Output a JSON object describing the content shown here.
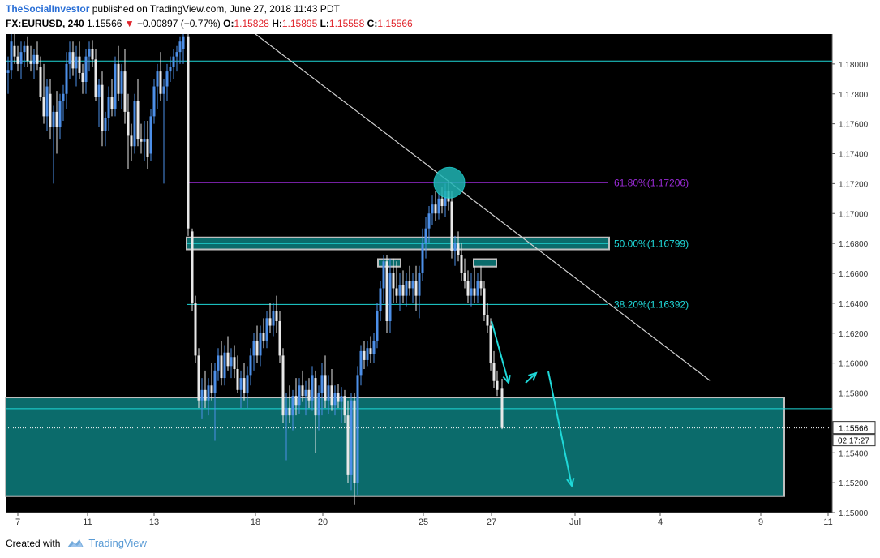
{
  "header": {
    "publisher": "TheSocialInvestor",
    "published_text": "published on TradingView.com, June 27, 2018 11:43 PDT",
    "symbol": "FX:EURUSD, 240",
    "last": "1.15566",
    "change": "−0.00897 (−0.77%)",
    "o_label": "O:",
    "o_value": "1.15828",
    "h_label": "H:",
    "h_value": "1.15895",
    "l_label": "L:",
    "l_value": "1.15558",
    "c_label": "C:",
    "c_value": "1.15566"
  },
  "footer": {
    "created_with": "Created with",
    "brand": "TradingView"
  },
  "colors": {
    "background": "#000000",
    "bull": "#4d8fe8",
    "bear": "#e8e8e8",
    "fib": "#1fd8d8",
    "fib618": "#9b2bd8",
    "zone": "#0b6b6b",
    "text": "#ffffff"
  },
  "chart_data": {
    "type": "candlestick",
    "symbol": "FX:EURUSD",
    "timeframe": "240",
    "ylim": [
      1.15,
      1.182
    ],
    "y_ticks": [
      "1.18000",
      "1.17800",
      "1.17600",
      "1.17400",
      "1.17200",
      "1.17000",
      "1.16800",
      "1.16600",
      "1.16400",
      "1.16200",
      "1.16000",
      "1.15800",
      "1.15400",
      "1.15200",
      "1.15000"
    ],
    "x_ticks": [
      "7",
      "11",
      "13",
      "18",
      "20",
      "25",
      "27",
      "Jul",
      "4",
      "9",
      "11"
    ],
    "fib_levels": [
      {
        "label": "61.80%(1.17206)",
        "value": 1.17206
      },
      {
        "label": "50.00%(1.16799)",
        "value": 1.16799
      },
      {
        "label": "38.20%(1.16392)",
        "value": 1.16392
      }
    ],
    "support_zone": [
      1.1511,
      1.1577
    ],
    "resistance_zone": [
      1.1676,
      1.1684
    ],
    "horizontal_lines": [
      1.1802,
      1.15695
    ],
    "current_price": {
      "value": "1.15566",
      "countdown": "02:17:27"
    },
    "trendline": [
      [
        315,
        1.182
      ],
      [
        876,
        1.1588
      ]
    ],
    "candles": [
      {
        "x": 10,
        "o": 1.1794,
        "h": 1.1805,
        "l": 1.178,
        "c": 1.1796
      },
      {
        "x": 14,
        "o": 1.1796,
        "h": 1.182,
        "l": 1.179,
        "c": 1.1815
      },
      {
        "x": 18,
        "o": 1.1812,
        "h": 1.182,
        "l": 1.18,
        "c": 1.1805
      },
      {
        "x": 22,
        "o": 1.1805,
        "h": 1.1812,
        "l": 1.1795,
        "c": 1.18
      },
      {
        "x": 26,
        "o": 1.18,
        "h": 1.1815,
        "l": 1.179,
        "c": 1.1808
      },
      {
        "x": 30,
        "o": 1.1808,
        "h": 1.1815,
        "l": 1.1798,
        "c": 1.1812
      },
      {
        "x": 34,
        "o": 1.1812,
        "h": 1.1818,
        "l": 1.1798,
        "c": 1.1802
      },
      {
        "x": 38,
        "o": 1.1802,
        "h": 1.1812,
        "l": 1.1795,
        "c": 1.18
      },
      {
        "x": 42,
        "o": 1.18,
        "h": 1.181,
        "l": 1.179,
        "c": 1.1806
      },
      {
        "x": 46,
        "o": 1.1806,
        "h": 1.1815,
        "l": 1.1796,
        "c": 1.18
      },
      {
        "x": 50,
        "o": 1.1798,
        "h": 1.1805,
        "l": 1.1775,
        "c": 1.1778
      },
      {
        "x": 54,
        "o": 1.1778,
        "h": 1.18,
        "l": 1.176,
        "c": 1.1765
      },
      {
        "x": 58,
        "o": 1.1765,
        "h": 1.179,
        "l": 1.1755,
        "c": 1.1785
      },
      {
        "x": 62,
        "o": 1.178,
        "h": 1.179,
        "l": 1.175,
        "c": 1.1758
      },
      {
        "x": 66,
        "o": 1.1758,
        "h": 1.1772,
        "l": 1.172,
        "c": 1.1768
      },
      {
        "x": 70,
        "o": 1.1768,
        "h": 1.1782,
        "l": 1.174,
        "c": 1.1758
      },
      {
        "x": 74,
        "o": 1.1758,
        "h": 1.178,
        "l": 1.175,
        "c": 1.1775
      },
      {
        "x": 78,
        "o": 1.1775,
        "h": 1.1786,
        "l": 1.1762,
        "c": 1.178
      },
      {
        "x": 82,
        "o": 1.178,
        "h": 1.1808,
        "l": 1.177,
        "c": 1.18
      },
      {
        "x": 86,
        "o": 1.18,
        "h": 1.1815,
        "l": 1.179,
        "c": 1.1808
      },
      {
        "x": 90,
        "o": 1.1808,
        "h": 1.1815,
        "l": 1.1792,
        "c": 1.1797
      },
      {
        "x": 94,
        "o": 1.1797,
        "h": 1.1812,
        "l": 1.1785,
        "c": 1.1805
      },
      {
        "x": 98,
        "o": 1.1805,
        "h": 1.1815,
        "l": 1.179,
        "c": 1.1794
      },
      {
        "x": 102,
        "o": 1.1794,
        "h": 1.18,
        "l": 1.178,
        "c": 1.1788
      },
      {
        "x": 106,
        "o": 1.1788,
        "h": 1.181,
        "l": 1.178,
        "c": 1.1805
      },
      {
        "x": 110,
        "o": 1.1805,
        "h": 1.1815,
        "l": 1.1795,
        "c": 1.181
      },
      {
        "x": 114,
        "o": 1.181,
        "h": 1.1816,
        "l": 1.1798,
        "c": 1.1803
      },
      {
        "x": 118,
        "o": 1.1803,
        "h": 1.181,
        "l": 1.1775,
        "c": 1.1778
      },
      {
        "x": 122,
        "o": 1.1778,
        "h": 1.179,
        "l": 1.1758,
        "c": 1.1786
      },
      {
        "x": 126,
        "o": 1.1786,
        "h": 1.1795,
        "l": 1.1745,
        "c": 1.1755
      },
      {
        "x": 130,
        "o": 1.1755,
        "h": 1.1768,
        "l": 1.1745,
        "c": 1.1764
      },
      {
        "x": 134,
        "o": 1.1764,
        "h": 1.1785,
        "l": 1.1755,
        "c": 1.1778
      },
      {
        "x": 138,
        "o": 1.1778,
        "h": 1.179,
        "l": 1.1765,
        "c": 1.177
      },
      {
        "x": 142,
        "o": 1.177,
        "h": 1.1805,
        "l": 1.1765,
        "c": 1.18
      },
      {
        "x": 146,
        "o": 1.18,
        "h": 1.1812,
        "l": 1.1775,
        "c": 1.178
      },
      {
        "x": 150,
        "o": 1.178,
        "h": 1.18,
        "l": 1.177,
        "c": 1.1795
      },
      {
        "x": 154,
        "o": 1.1795,
        "h": 1.181,
        "l": 1.176,
        "c": 1.1768
      },
      {
        "x": 158,
        "o": 1.1768,
        "h": 1.178,
        "l": 1.173,
        "c": 1.1752
      },
      {
        "x": 162,
        "o": 1.1752,
        "h": 1.176,
        "l": 1.1735,
        "c": 1.1745
      },
      {
        "x": 166,
        "o": 1.1745,
        "h": 1.178,
        "l": 1.174,
        "c": 1.1775
      },
      {
        "x": 170,
        "o": 1.1775,
        "h": 1.179,
        "l": 1.1745,
        "c": 1.175
      },
      {
        "x": 174,
        "o": 1.175,
        "h": 1.176,
        "l": 1.174,
        "c": 1.1748
      },
      {
        "x": 178,
        "o": 1.1748,
        "h": 1.1762,
        "l": 1.1735,
        "c": 1.175
      },
      {
        "x": 182,
        "o": 1.175,
        "h": 1.1762,
        "l": 1.173,
        "c": 1.1738
      },
      {
        "x": 186,
        "o": 1.174,
        "h": 1.177,
        "l": 1.1735,
        "c": 1.1765
      },
      {
        "x": 190,
        "o": 1.1765,
        "h": 1.179,
        "l": 1.176,
        "c": 1.1785
      },
      {
        "x": 194,
        "o": 1.1785,
        "h": 1.18,
        "l": 1.177,
        "c": 1.1795
      },
      {
        "x": 198,
        "o": 1.1795,
        "h": 1.1808,
        "l": 1.1775,
        "c": 1.178
      },
      {
        "x": 202,
        "o": 1.178,
        "h": 1.179,
        "l": 1.172,
        "c": 1.1785
      },
      {
        "x": 206,
        "o": 1.1785,
        "h": 1.18,
        "l": 1.1775,
        "c": 1.1795
      },
      {
        "x": 210,
        "o": 1.1795,
        "h": 1.1805,
        "l": 1.1788,
        "c": 1.1798
      },
      {
        "x": 214,
        "o": 1.1798,
        "h": 1.181,
        "l": 1.179,
        "c": 1.1805
      },
      {
        "x": 218,
        "o": 1.1805,
        "h": 1.1812,
        "l": 1.1795,
        "c": 1.1808
      },
      {
        "x": 222,
        "o": 1.1808,
        "h": 1.1818,
        "l": 1.18,
        "c": 1.1815
      },
      {
        "x": 226,
        "o": 1.181,
        "h": 1.182,
        "l": 1.18,
        "c": 1.1818
      },
      {
        "x": 232,
        "o": 1.1818,
        "h": 1.182,
        "l": 1.1685,
        "c": 1.169
      },
      {
        "x": 237,
        "o": 1.1688,
        "h": 1.169,
        "l": 1.1635,
        "c": 1.164
      },
      {
        "x": 241,
        "o": 1.164,
        "h": 1.1645,
        "l": 1.16,
        "c": 1.1605
      },
      {
        "x": 245,
        "o": 1.1605,
        "h": 1.161,
        "l": 1.157,
        "c": 1.1575
      },
      {
        "x": 249,
        "o": 1.1575,
        "h": 1.159,
        "l": 1.1563,
        "c": 1.1582
      },
      {
        "x": 253,
        "o": 1.1582,
        "h": 1.1595,
        "l": 1.157,
        "c": 1.1575
      },
      {
        "x": 257,
        "o": 1.1575,
        "h": 1.159,
        "l": 1.1565,
        "c": 1.1585
      },
      {
        "x": 261,
        "o": 1.1585,
        "h": 1.16,
        "l": 1.1575,
        "c": 1.158
      },
      {
        "x": 265,
        "o": 1.158,
        "h": 1.16,
        "l": 1.1548,
        "c": 1.1595
      },
      {
        "x": 269,
        "o": 1.1595,
        "h": 1.161,
        "l": 1.1588,
        "c": 1.1605
      },
      {
        "x": 273,
        "o": 1.1605,
        "h": 1.1615,
        "l": 1.1585,
        "c": 1.159
      },
      {
        "x": 277,
        "o": 1.159,
        "h": 1.1612,
        "l": 1.1585,
        "c": 1.1607
      },
      {
        "x": 281,
        "o": 1.1607,
        "h": 1.1618,
        "l": 1.1595,
        "c": 1.1598
      },
      {
        "x": 285,
        "o": 1.1598,
        "h": 1.161,
        "l": 1.159,
        "c": 1.1604
      },
      {
        "x": 289,
        "o": 1.1604,
        "h": 1.1612,
        "l": 1.159,
        "c": 1.1596
      },
      {
        "x": 293,
        "o": 1.1596,
        "h": 1.1605,
        "l": 1.158,
        "c": 1.1582
      },
      {
        "x": 297,
        "o": 1.1582,
        "h": 1.1595,
        "l": 1.157,
        "c": 1.159
      },
      {
        "x": 301,
        "o": 1.159,
        "h": 1.16,
        "l": 1.1575,
        "c": 1.158
      },
      {
        "x": 305,
        "o": 1.158,
        "h": 1.1598,
        "l": 1.157,
        "c": 1.1592
      },
      {
        "x": 309,
        "o": 1.1592,
        "h": 1.161,
        "l": 1.1585,
        "c": 1.1605
      },
      {
        "x": 313,
        "o": 1.1605,
        "h": 1.162,
        "l": 1.1595,
        "c": 1.1615
      },
      {
        "x": 317,
        "o": 1.1615,
        "h": 1.1625,
        "l": 1.16,
        "c": 1.1605
      },
      {
        "x": 321,
        "o": 1.1605,
        "h": 1.1625,
        "l": 1.1598,
        "c": 1.162
      },
      {
        "x": 325,
        "o": 1.162,
        "h": 1.163,
        "l": 1.161,
        "c": 1.1615
      },
      {
        "x": 329,
        "o": 1.1615,
        "h": 1.1635,
        "l": 1.161,
        "c": 1.163
      },
      {
        "x": 333,
        "o": 1.163,
        "h": 1.164,
        "l": 1.162,
        "c": 1.1625
      },
      {
        "x": 337,
        "o": 1.1625,
        "h": 1.164,
        "l": 1.1618,
        "c": 1.1635
      },
      {
        "x": 341,
        "o": 1.1635,
        "h": 1.1645,
        "l": 1.162,
        "c": 1.1628
      },
      {
        "x": 345,
        "o": 1.1628,
        "h": 1.1635,
        "l": 1.16,
        "c": 1.1605
      },
      {
        "x": 349,
        "o": 1.1605,
        "h": 1.161,
        "l": 1.156,
        "c": 1.1565
      },
      {
        "x": 353,
        "o": 1.1565,
        "h": 1.158,
        "l": 1.1535,
        "c": 1.157
      },
      {
        "x": 357,
        "o": 1.157,
        "h": 1.1585,
        "l": 1.156,
        "c": 1.1565
      },
      {
        "x": 361,
        "o": 1.1565,
        "h": 1.1582,
        "l": 1.1555,
        "c": 1.1578
      },
      {
        "x": 365,
        "o": 1.1578,
        "h": 1.159,
        "l": 1.1565,
        "c": 1.1572
      },
      {
        "x": 369,
        "o": 1.1572,
        "h": 1.159,
        "l": 1.1566,
        "c": 1.1585
      },
      {
        "x": 373,
        "o": 1.1585,
        "h": 1.1595,
        "l": 1.1574,
        "c": 1.1578
      },
      {
        "x": 377,
        "o": 1.1578,
        "h": 1.1588,
        "l": 1.1565,
        "c": 1.1582
      },
      {
        "x": 381,
        "o": 1.1582,
        "h": 1.159,
        "l": 1.157,
        "c": 1.1575
      },
      {
        "x": 385,
        "o": 1.1575,
        "h": 1.1598,
        "l": 1.1568,
        "c": 1.1592
      },
      {
        "x": 389,
        "o": 1.159,
        "h": 1.1595,
        "l": 1.154,
        "c": 1.1565
      },
      {
        "x": 393,
        "o": 1.1565,
        "h": 1.1585,
        "l": 1.1555,
        "c": 1.158
      },
      {
        "x": 397,
        "o": 1.158,
        "h": 1.16,
        "l": 1.1565,
        "c": 1.1592
      },
      {
        "x": 401,
        "o": 1.1592,
        "h": 1.1605,
        "l": 1.157,
        "c": 1.1575
      },
      {
        "x": 405,
        "o": 1.1575,
        "h": 1.1592,
        "l": 1.1566,
        "c": 1.1585
      },
      {
        "x": 409,
        "o": 1.1585,
        "h": 1.1596,
        "l": 1.1568,
        "c": 1.1572
      },
      {
        "x": 413,
        "o": 1.1572,
        "h": 1.1585,
        "l": 1.1565,
        "c": 1.158
      },
      {
        "x": 417,
        "o": 1.158,
        "h": 1.1586,
        "l": 1.157,
        "c": 1.1574
      },
      {
        "x": 421,
        "o": 1.1574,
        "h": 1.1584,
        "l": 1.156,
        "c": 1.1578
      },
      {
        "x": 425,
        "o": 1.1578,
        "h": 1.1582,
        "l": 1.156,
        "c": 1.1565
      },
      {
        "x": 429,
        "o": 1.1565,
        "h": 1.1575,
        "l": 1.152,
        "c": 1.1525
      },
      {
        "x": 433,
        "o": 1.1525,
        "h": 1.158,
        "l": 1.1515,
        "c": 1.1575
      },
      {
        "x": 437,
        "o": 1.1575,
        "h": 1.158,
        "l": 1.1505,
        "c": 1.152
      },
      {
        "x": 441,
        "o": 1.152,
        "h": 1.1598,
        "l": 1.1512,
        "c": 1.1592
      },
      {
        "x": 445,
        "o": 1.1592,
        "h": 1.1612,
        "l": 1.1585,
        "c": 1.1608
      },
      {
        "x": 449,
        "o": 1.1608,
        "h": 1.1615,
        "l": 1.1596,
        "c": 1.1602
      },
      {
        "x": 453,
        "o": 1.1602,
        "h": 1.1615,
        "l": 1.1598,
        "c": 1.161
      },
      {
        "x": 457,
        "o": 1.161,
        "h": 1.1618,
        "l": 1.16,
        "c": 1.1606
      },
      {
        "x": 461,
        "o": 1.1606,
        "h": 1.162,
        "l": 1.16,
        "c": 1.1615
      },
      {
        "x": 465,
        "o": 1.1615,
        "h": 1.164,
        "l": 1.161,
        "c": 1.1635
      },
      {
        "x": 469,
        "o": 1.1635,
        "h": 1.1655,
        "l": 1.1628,
        "c": 1.165
      },
      {
        "x": 473,
        "o": 1.165,
        "h": 1.1672,
        "l": 1.164,
        "c": 1.1668
      },
      {
        "x": 477,
        "o": 1.1668,
        "h": 1.1672,
        "l": 1.162,
        "c": 1.1628
      },
      {
        "x": 481,
        "o": 1.1628,
        "h": 1.167,
        "l": 1.162,
        "c": 1.166
      },
      {
        "x": 485,
        "o": 1.166,
        "h": 1.167,
        "l": 1.164,
        "c": 1.165
      },
      {
        "x": 489,
        "o": 1.165,
        "h": 1.1668,
        "l": 1.164,
        "c": 1.1645
      },
      {
        "x": 493,
        "o": 1.1645,
        "h": 1.166,
        "l": 1.1635,
        "c": 1.1652
      },
      {
        "x": 497,
        "o": 1.1652,
        "h": 1.1662,
        "l": 1.164,
        "c": 1.1645
      },
      {
        "x": 501,
        "o": 1.1645,
        "h": 1.166,
        "l": 1.1638,
        "c": 1.1655
      },
      {
        "x": 505,
        "o": 1.1655,
        "h": 1.1665,
        "l": 1.1645,
        "c": 1.165
      },
      {
        "x": 509,
        "o": 1.165,
        "h": 1.166,
        "l": 1.164,
        "c": 1.1655
      },
      {
        "x": 513,
        "o": 1.1655,
        "h": 1.1665,
        "l": 1.1635,
        "c": 1.1645
      },
      {
        "x": 517,
        "o": 1.1645,
        "h": 1.1665,
        "l": 1.163,
        "c": 1.166
      },
      {
        "x": 521,
        "o": 1.166,
        "h": 1.169,
        "l": 1.1655,
        "c": 1.168
      },
      {
        "x": 525,
        "o": 1.168,
        "h": 1.1698,
        "l": 1.167,
        "c": 1.169
      },
      {
        "x": 529,
        "o": 1.169,
        "h": 1.1705,
        "l": 1.168,
        "c": 1.17
      },
      {
        "x": 533,
        "o": 1.17,
        "h": 1.1712,
        "l": 1.1692,
        "c": 1.1706
      },
      {
        "x": 537,
        "o": 1.1706,
        "h": 1.1715,
        "l": 1.1695,
        "c": 1.17
      },
      {
        "x": 541,
        "o": 1.17,
        "h": 1.1714,
        "l": 1.1696,
        "c": 1.171
      },
      {
        "x": 545,
        "o": 1.171,
        "h": 1.1718,
        "l": 1.17,
        "c": 1.1705
      },
      {
        "x": 549,
        "o": 1.1705,
        "h": 1.172,
        "l": 1.1698,
        "c": 1.1715
      },
      {
        "x": 553,
        "o": 1.1715,
        "h": 1.1722,
        "l": 1.1702,
        "c": 1.1708
      },
      {
        "x": 557,
        "o": 1.1708,
        "h": 1.1715,
        "l": 1.167,
        "c": 1.1675
      },
      {
        "x": 561,
        "o": 1.1675,
        "h": 1.1685,
        "l": 1.1665,
        "c": 1.168
      },
      {
        "x": 565,
        "o": 1.168,
        "h": 1.1688,
        "l": 1.1668,
        "c": 1.1672
      },
      {
        "x": 569,
        "o": 1.1672,
        "h": 1.168,
        "l": 1.1655,
        "c": 1.166
      },
      {
        "x": 573,
        "o": 1.166,
        "h": 1.167,
        "l": 1.165,
        "c": 1.1655
      },
      {
        "x": 577,
        "o": 1.1655,
        "h": 1.1662,
        "l": 1.164,
        "c": 1.1645
      },
      {
        "x": 581,
        "o": 1.1645,
        "h": 1.166,
        "l": 1.1638,
        "c": 1.165
      },
      {
        "x": 585,
        "o": 1.165,
        "h": 1.1665,
        "l": 1.164,
        "c": 1.1645
      },
      {
        "x": 589,
        "o": 1.1645,
        "h": 1.166,
        "l": 1.164,
        "c": 1.1655
      },
      {
        "x": 593,
        "o": 1.1655,
        "h": 1.1665,
        "l": 1.1645,
        "c": 1.165
      },
      {
        "x": 597,
        "o": 1.165,
        "h": 1.1655,
        "l": 1.1628,
        "c": 1.1632
      },
      {
        "x": 601,
        "o": 1.1632,
        "h": 1.164,
        "l": 1.162,
        "c": 1.1625
      },
      {
        "x": 605,
        "o": 1.1625,
        "h": 1.163,
        "l": 1.1595,
        "c": 1.16
      },
      {
        "x": 609,
        "o": 1.16,
        "h": 1.1608,
        "l": 1.1583,
        "c": 1.1588
      },
      {
        "x": 613,
        "o": 1.1588,
        "h": 1.1595,
        "l": 1.1578,
        "c": 1.1582
      },
      {
        "x": 619,
        "o": 1.15828,
        "h": 1.15895,
        "l": 1.15558,
        "c": 1.15566
      }
    ]
  }
}
